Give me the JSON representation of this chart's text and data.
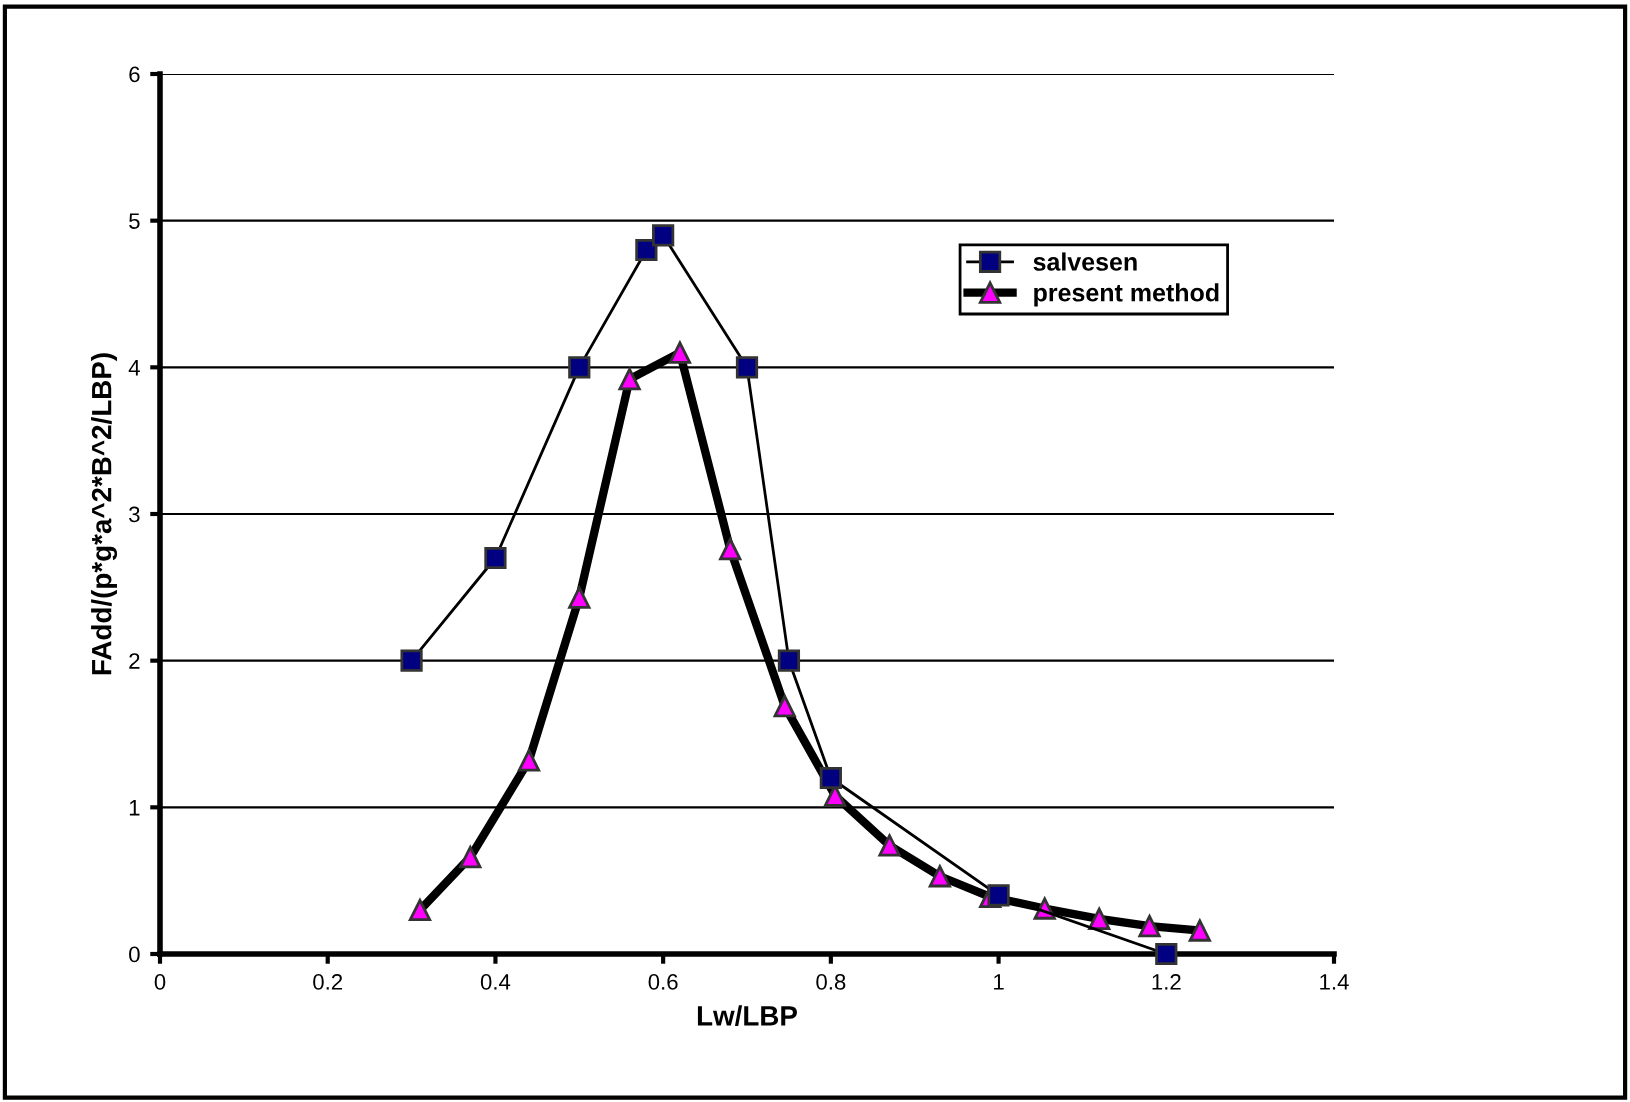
{
  "chart_data": {
    "type": "line",
    "xlabel": "Lw/LBP",
    "ylabel": "FAdd/(p*g*a^2*B^2/LBP)",
    "xlim": [
      0,
      1.4
    ],
    "xticks": [
      0,
      0.2,
      0.4,
      0.6,
      0.8,
      1,
      1.2,
      1.4
    ],
    "ylim": [
      0,
      6
    ],
    "yticks": [
      0,
      1,
      2,
      3,
      4,
      5,
      6
    ],
    "grid": "y",
    "legend": "top right",
    "series": [
      {
        "name": "salvesen",
        "color": "#000080",
        "marker": "square",
        "x": [
          0.3,
          0.4,
          0.5,
          0.58,
          0.6,
          0.7,
          0.75,
          0.8,
          1.0,
          1.2
        ],
        "values": [
          2,
          2.7,
          4,
          4.8,
          4.9,
          4,
          2,
          1.2,
          0.4,
          0
        ]
      },
      {
        "name": "present method",
        "color": "#ff00ff",
        "marker": "triangle",
        "x": [
          0.31,
          0.37,
          0.44,
          0.5,
          0.56,
          0.62,
          0.68,
          0.745,
          0.805,
          0.87,
          0.93,
          0.99,
          1.055,
          1.12,
          1.18,
          1.24
        ],
        "values": [
          0.3,
          0.66,
          1.32,
          2.43,
          3.92,
          4.1,
          2.76,
          1.69,
          1.08,
          0.74,
          0.53,
          0.39,
          0.31,
          0.24,
          0.19,
          0.16
        ]
      }
    ]
  }
}
